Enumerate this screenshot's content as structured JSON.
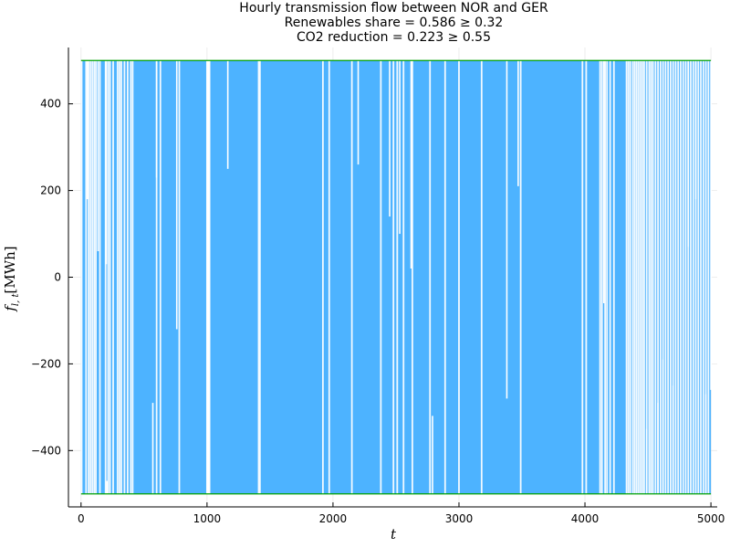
{
  "chart_data": {
    "type": "area",
    "title_lines": [
      "Hourly transmission flow between NOR and GER",
      "Renewables share = 0.586 ≥ 0.32",
      "CO2 reduction = 0.223 ≥ 0.55"
    ],
    "xlabel": "t",
    "ylabel_main": "f",
    "ylabel_sub": "l, t",
    "ylabel_unit": "[MWh]",
    "xlim": [
      -100,
      5050
    ],
    "ylim": [
      -530,
      530
    ],
    "x_ticks": [
      0,
      1000,
      2000,
      3000,
      4000,
      5000
    ],
    "x_tick_labels": [
      "0",
      "1000",
      "2000",
      "3000",
      "4000",
      "5000"
    ],
    "y_ticks": [
      -400,
      -200,
      0,
      200,
      400
    ],
    "y_tick_labels": [
      "−400",
      "−200",
      "0",
      "200",
      "400"
    ],
    "grid": true,
    "legend": "none",
    "series": [
      {
        "color": "#4db3ff",
        "x_range": [
          0,
          5000
        ],
        "min_value": -500,
        "max_value": 500,
        "gaps_x": [
          5,
          40,
          60,
          75,
          90,
          105,
          118,
          150,
          195,
          215,
          230,
          255,
          290,
          305,
          320,
          345,
          370,
          395,
          410,
          600,
          630,
          780,
          1000,
          1005,
          1010,
          1015,
          1020,
          1410,
          1420,
          1920,
          1970,
          2150,
          2380,
          2480,
          2510,
          2560,
          2630,
          2770,
          2890,
          3000,
          3180,
          3490,
          3980,
          4010,
          4120,
          4135,
          4160,
          4175,
          4200,
          4230,
          4330,
          4345,
          4360,
          4380,
          4395,
          4410,
          4425,
          4440,
          4455,
          4470,
          4490,
          4510,
          4525,
          4540,
          4560,
          4580,
          4600,
          4620,
          4640,
          4660,
          4680,
          4700,
          4720,
          4740,
          4760,
          4780,
          4800,
          4820,
          4840,
          4860,
          4880,
          4900,
          4920,
          4940,
          4960,
          4980
        ],
        "partial_spikes": [
          {
            "x": 50,
            "from": 500,
            "to": 180
          },
          {
            "x": 135,
            "from": 500,
            "to": 60
          },
          {
            "x": 200,
            "from": 500,
            "to": 30
          },
          {
            "x": 205,
            "from": -500,
            "to": -470
          },
          {
            "x": 570,
            "from": -500,
            "to": -290
          },
          {
            "x": 600,
            "from": 500,
            "to": 230
          },
          {
            "x": 760,
            "from": 500,
            "to": -120
          },
          {
            "x": 1165,
            "from": 500,
            "to": 250
          },
          {
            "x": 2200,
            "from": 500,
            "to": 260
          },
          {
            "x": 2450,
            "from": 500,
            "to": 140
          },
          {
            "x": 2530,
            "from": 500,
            "to": 100
          },
          {
            "x": 2620,
            "from": 500,
            "to": 20
          },
          {
            "x": 2790,
            "from": -500,
            "to": -320
          },
          {
            "x": 3380,
            "from": 500,
            "to": -280
          },
          {
            "x": 3470,
            "from": 500,
            "to": 210
          },
          {
            "x": 4150,
            "from": 500,
            "to": -60
          },
          {
            "x": 4490,
            "from": -500,
            "to": -350
          },
          {
            "x": 4580,
            "from": -500,
            "to": -290
          },
          {
            "x": 4620,
            "from": -500,
            "to": -190
          },
          {
            "x": 4700,
            "from": -500,
            "to": -250
          },
          {
            "x": 4820,
            "from": 500,
            "to": 70
          },
          {
            "x": 4880,
            "from": 500,
            "to": 180
          },
          {
            "x": 4960,
            "from": -500,
            "to": -270
          },
          {
            "x": 5000,
            "from": 500,
            "to": -260
          }
        ]
      },
      {
        "color": "#00a000",
        "values": [
          500,
          -500
        ]
      }
    ]
  }
}
